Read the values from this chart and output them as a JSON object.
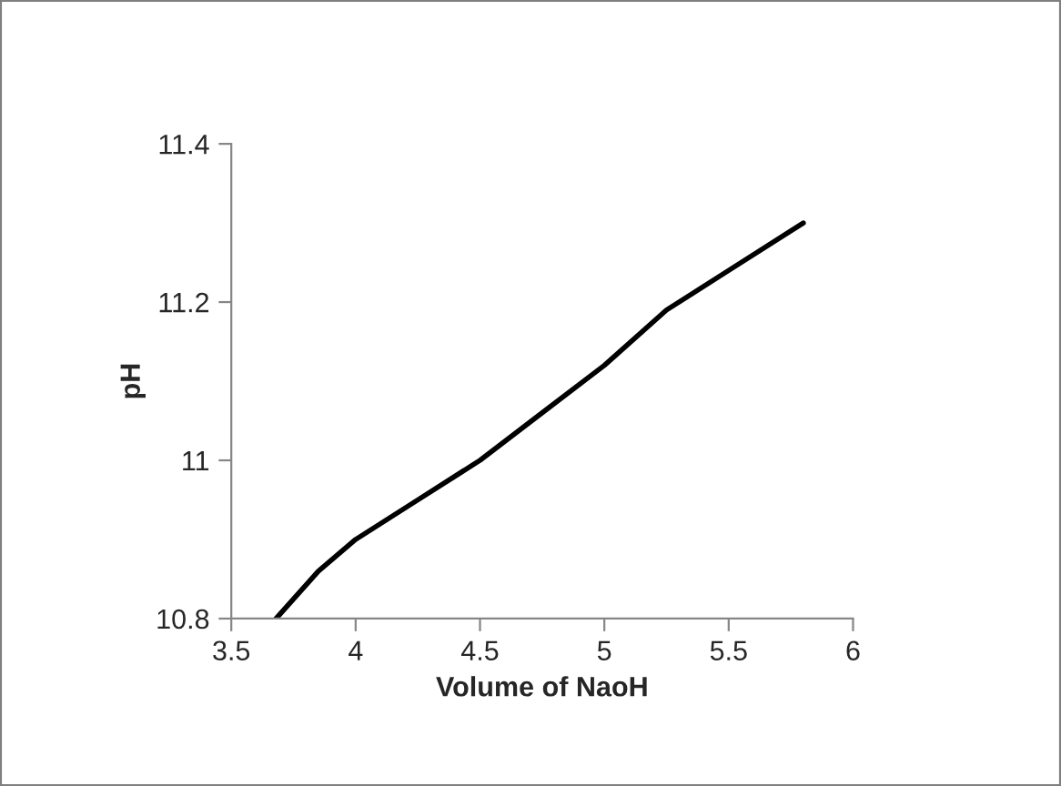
{
  "chart_data": {
    "type": "line",
    "xlabel": "Volume of NaoH",
    "ylabel": "pH",
    "x": [
      3.68,
      3.85,
      4,
      4.25,
      4.5,
      4.75,
      5,
      5.25,
      5.5,
      5.8
    ],
    "series": [
      {
        "color": "#000000",
        "values": [
          10.8,
          10.86,
          10.9,
          10.95,
          11.0,
          11.06,
          11.12,
          11.19,
          11.24,
          11.3
        ]
      }
    ],
    "xlim": [
      3.5,
      6
    ],
    "xticks": [
      3.5,
      4,
      4.5,
      5,
      5.5,
      6
    ],
    "ylim": [
      10.8,
      11.4
    ],
    "yticks": [
      10.8,
      11,
      11.2,
      11.4
    ],
    "grid": false,
    "legend": false,
    "marker": "none",
    "line_style": "solid"
  }
}
